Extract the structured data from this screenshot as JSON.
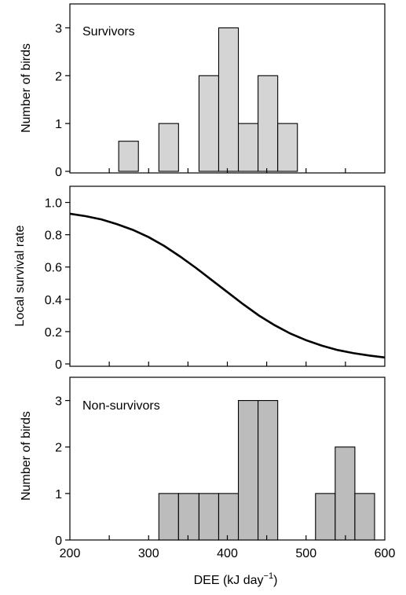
{
  "figure": {
    "xlabel_main": "DEE (kJ day",
    "xlabel_sup": "−1",
    "xlabel_end": ")"
  },
  "chart_data": [
    {
      "type": "bar",
      "panel": "survivors",
      "annotation": "Survivors",
      "ylabel": "Number of birds",
      "xlim": [
        200,
        600
      ],
      "ylim": [
        0,
        3.5
      ],
      "yticks": [
        "0",
        "1",
        "2",
        "3"
      ],
      "bar_color": "#d4d4d4",
      "bars": [
        {
          "x0": 262,
          "x1": 287,
          "value": 0.63
        },
        {
          "x0": 313,
          "x1": 338,
          "value": 1
        },
        {
          "x0": 364,
          "x1": 389,
          "value": 2
        },
        {
          "x0": 389,
          "x1": 414,
          "value": 3
        },
        {
          "x0": 414,
          "x1": 439,
          "value": 1
        },
        {
          "x0": 439,
          "x1": 464,
          "value": 2
        },
        {
          "x0": 464,
          "x1": 489,
          "value": 1
        }
      ]
    },
    {
      "type": "line",
      "panel": "survival-curve",
      "ylabel": "Local survival rate",
      "xlim": [
        200,
        600
      ],
      "ylim": [
        0,
        1.1
      ],
      "yticks": [
        "0",
        "0.2",
        "0.4",
        "0.6",
        "0.8",
        "1.0"
      ],
      "line_color": "#000000",
      "points": [
        {
          "x": 200,
          "y": 0.93
        },
        {
          "x": 220,
          "y": 0.915
        },
        {
          "x": 240,
          "y": 0.895
        },
        {
          "x": 260,
          "y": 0.865
        },
        {
          "x": 280,
          "y": 0.83
        },
        {
          "x": 300,
          "y": 0.785
        },
        {
          "x": 320,
          "y": 0.73
        },
        {
          "x": 340,
          "y": 0.665
        },
        {
          "x": 360,
          "y": 0.595
        },
        {
          "x": 380,
          "y": 0.52
        },
        {
          "x": 400,
          "y": 0.445
        },
        {
          "x": 420,
          "y": 0.37
        },
        {
          "x": 440,
          "y": 0.3
        },
        {
          "x": 460,
          "y": 0.24
        },
        {
          "x": 480,
          "y": 0.188
        },
        {
          "x": 500,
          "y": 0.147
        },
        {
          "x": 520,
          "y": 0.113
        },
        {
          "x": 540,
          "y": 0.086
        },
        {
          "x": 560,
          "y": 0.067
        },
        {
          "x": 580,
          "y": 0.052
        },
        {
          "x": 600,
          "y": 0.04
        }
      ]
    },
    {
      "type": "bar",
      "panel": "non-survivors",
      "annotation": "Non-survivors",
      "ylabel": "Number of birds",
      "xlim": [
        200,
        600
      ],
      "ylim": [
        0,
        3.5
      ],
      "yticks": [
        "0",
        "1",
        "2",
        "3"
      ],
      "xticks": [
        "200",
        "300",
        "400",
        "500",
        "600"
      ],
      "bar_color": "#bcbcbc",
      "bars": [
        {
          "x0": 313,
          "x1": 338,
          "value": 1
        },
        {
          "x0": 338,
          "x1": 364,
          "value": 1
        },
        {
          "x0": 364,
          "x1": 389,
          "value": 1
        },
        {
          "x0": 389,
          "x1": 414,
          "value": 1
        },
        {
          "x0": 414,
          "x1": 439,
          "value": 3
        },
        {
          "x0": 439,
          "x1": 464,
          "value": 3
        },
        {
          "x0": 512,
          "x1": 537,
          "value": 1
        },
        {
          "x0": 537,
          "x1": 562,
          "value": 2
        },
        {
          "x0": 562,
          "x1": 587,
          "value": 1
        }
      ]
    }
  ]
}
